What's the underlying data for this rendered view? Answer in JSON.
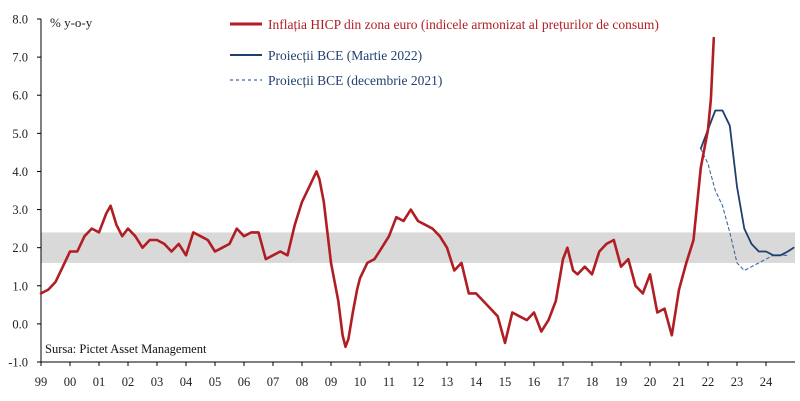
{
  "chart_data": {
    "type": "line",
    "ylabel": "% y-o-y",
    "source": "Sursa: Pictet Asset Management",
    "ylim": [
      -1.0,
      8.0
    ],
    "y_ticks": [
      "8.0",
      "7.0",
      "6.0",
      "5.0",
      "4.0",
      "3.0",
      "2.0",
      "1.0",
      "0.0",
      "-1.0"
    ],
    "x_ticks": [
      "99",
      "00",
      "01",
      "02",
      "03",
      "04",
      "05",
      "06",
      "07",
      "08",
      "09",
      "10",
      "11",
      "12",
      "13",
      "14",
      "15",
      "16",
      "17",
      "18",
      "19",
      "20",
      "21",
      "22",
      "23",
      "24"
    ],
    "target_band": [
      1.6,
      2.4
    ],
    "grid": false,
    "legend_placement": "top",
    "colors": {
      "hicp": "#b01e23",
      "march2022": "#1f3f6e",
      "dec2021": "#3b6aa0",
      "band": "#d9d9d9"
    },
    "series": [
      {
        "name": "Inflația HICP din zona euro (indicele armonizat al prețurilor de consum)",
        "style": "solid",
        "x": [
          1999.0,
          1999.25,
          1999.5,
          1999.75,
          2000.0,
          2000.25,
          2000.5,
          2000.75,
          2001.0,
          2001.25,
          2001.4,
          2001.6,
          2001.8,
          2002.0,
          2002.25,
          2002.5,
          2002.75,
          2003.0,
          2003.25,
          2003.5,
          2003.75,
          2004.0,
          2004.25,
          2004.5,
          2004.75,
          2005.0,
          2005.25,
          2005.5,
          2005.75,
          2006.0,
          2006.25,
          2006.5,
          2006.75,
          2007.0,
          2007.25,
          2007.5,
          2007.75,
          2008.0,
          2008.25,
          2008.5,
          2008.6,
          2008.75,
          2009.0,
          2009.25,
          2009.4,
          2009.5,
          2009.6,
          2009.75,
          2009.9,
          2010.0,
          2010.25,
          2010.5,
          2010.75,
          2011.0,
          2011.25,
          2011.5,
          2011.75,
          2012.0,
          2012.25,
          2012.5,
          2012.75,
          2013.0,
          2013.25,
          2013.5,
          2013.75,
          2014.0,
          2014.25,
          2014.5,
          2014.75,
          2015.0,
          2015.25,
          2015.5,
          2015.75,
          2016.0,
          2016.25,
          2016.5,
          2016.75,
          2017.0,
          2017.15,
          2017.35,
          2017.5,
          2017.75,
          2018.0,
          2018.25,
          2018.5,
          2018.75,
          2019.0,
          2019.25,
          2019.5,
          2019.75,
          2020.0,
          2020.25,
          2020.5,
          2020.75,
          2021.0,
          2021.25,
          2021.5,
          2021.75,
          2022.0,
          2022.1,
          2022.2
        ],
        "values": [
          0.8,
          0.9,
          1.1,
          1.5,
          1.9,
          1.9,
          2.3,
          2.5,
          2.4,
          2.9,
          3.1,
          2.6,
          2.3,
          2.5,
          2.3,
          2.0,
          2.2,
          2.2,
          2.1,
          1.9,
          2.1,
          1.8,
          2.4,
          2.3,
          2.2,
          1.9,
          2.0,
          2.1,
          2.5,
          2.3,
          2.4,
          2.4,
          1.7,
          1.8,
          1.9,
          1.8,
          2.6,
          3.2,
          3.6,
          4.0,
          3.8,
          3.2,
          1.6,
          0.6,
          -0.3,
          -0.6,
          -0.4,
          0.3,
          0.9,
          1.2,
          1.6,
          1.7,
          2.0,
          2.3,
          2.8,
          2.7,
          3.0,
          2.7,
          2.6,
          2.5,
          2.3,
          2.0,
          1.4,
          1.6,
          0.8,
          0.8,
          0.6,
          0.4,
          0.2,
          -0.5,
          0.3,
          0.2,
          0.1,
          0.3,
          -0.2,
          0.1,
          0.6,
          1.7,
          2.0,
          1.4,
          1.3,
          1.5,
          1.3,
          1.9,
          2.1,
          2.2,
          1.5,
          1.7,
          1.0,
          0.8,
          1.3,
          0.3,
          0.4,
          -0.3,
          0.9,
          1.6,
          2.2,
          4.1,
          5.1,
          5.9,
          7.5
        ]
      },
      {
        "name": "Proiecții BCE (Martie 2022)",
        "style": "solid",
        "x": [
          2021.75,
          2022.0,
          2022.25,
          2022.5,
          2022.75,
          2023.0,
          2023.25,
          2023.5,
          2023.75,
          2024.0,
          2024.25,
          2024.5,
          2024.75,
          2024.95
        ],
        "values": [
          4.6,
          5.1,
          5.6,
          5.6,
          5.2,
          3.6,
          2.5,
          2.1,
          1.9,
          1.9,
          1.8,
          1.8,
          1.9,
          2.0
        ]
      },
      {
        "name": "Proiecții BCE (decembrie 2021)",
        "style": "dashed",
        "x": [
          2021.75,
          2022.0,
          2022.25,
          2022.5,
          2022.75,
          2023.0,
          2023.25,
          2023.5,
          2023.75,
          2024.0,
          2024.25,
          2024.5,
          2024.75
        ],
        "values": [
          4.6,
          4.2,
          3.5,
          3.1,
          2.4,
          1.6,
          1.4,
          1.5,
          1.6,
          1.7,
          1.8,
          1.8,
          1.8
        ]
      }
    ]
  }
}
